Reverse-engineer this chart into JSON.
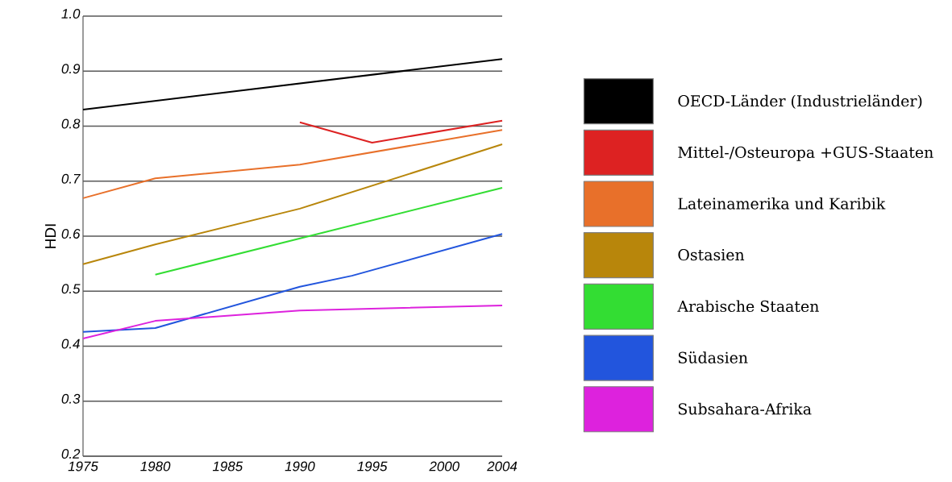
{
  "chart_data": {
    "type": "line",
    "ylabel": "HDI",
    "xlim": [
      1975,
      2004
    ],
    "ylim": [
      0.2,
      1.0
    ],
    "xticks": [
      1975,
      1980,
      1985,
      1990,
      1995,
      2000,
      2004
    ],
    "yticks": [
      0.2,
      0.3,
      0.4,
      0.5,
      0.6,
      0.7,
      0.8,
      0.9,
      {
        "value": 1.0,
        "label": "1.0"
      }
    ],
    "grid": "y",
    "legend": "right",
    "series": [
      {
        "name": "OECD-Länder (Industrieländer)",
        "color": "#000000",
        "x": [
          1975,
          2004
        ],
        "values": [
          0.83,
          0.922
        ]
      },
      {
        "name": "Mittel-/Osteuropa +GUS-Staaten",
        "color": "#dd2222",
        "x": [
          1990,
          1995,
          2004
        ],
        "values": [
          0.807,
          0.77,
          0.81
        ]
      },
      {
        "name": "Lateinamerika und Karibik",
        "color": "#e8702a",
        "x": [
          1975,
          1980,
          1990,
          2004
        ],
        "values": [
          0.669,
          0.705,
          0.73,
          0.793
        ]
      },
      {
        "name": "Ostasien",
        "color": "#b8860b",
        "x": [
          1975,
          1980,
          1990,
          2004
        ],
        "values": [
          0.549,
          0.585,
          0.65,
          0.767
        ]
      },
      {
        "name": "Arabische Staaten",
        "color": "#33dd33",
        "x": [
          1980,
          2004
        ],
        "values": [
          0.53,
          0.688
        ]
      },
      {
        "name": "Südasien",
        "color": "#2255dd",
        "x": [
          1975,
          1980,
          1990,
          1993.6,
          2004
        ],
        "values": [
          0.426,
          0.433,
          0.508,
          0.528,
          0.604
        ]
      },
      {
        "name": "Subsahara-Afrika",
        "color": "#dd22dd",
        "x": [
          1975,
          1980,
          1990,
          2004
        ],
        "values": [
          0.414,
          0.446,
          0.465,
          0.474
        ]
      }
    ]
  }
}
